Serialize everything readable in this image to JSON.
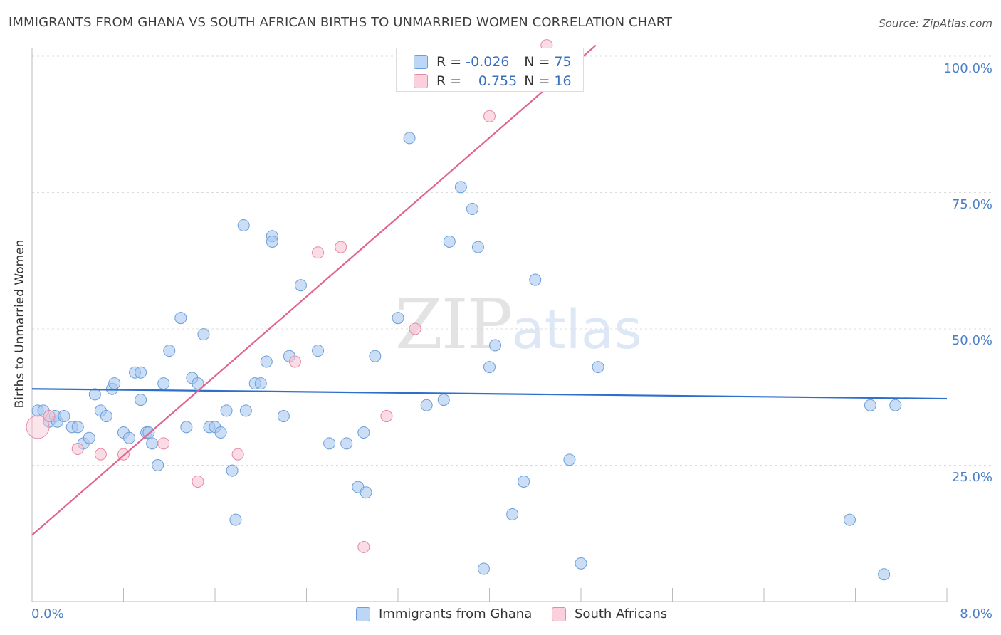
{
  "title": "IMMIGRANTS FROM GHANA VS SOUTH AFRICAN BIRTHS TO UNMARRIED WOMEN CORRELATION CHART",
  "source": "Source: ZipAtlas.com",
  "watermark": {
    "zip": "ZIP",
    "atlas": "atlas"
  },
  "stats": {
    "rows": [
      {
        "r_label": "R =",
        "r_value": "-0.026",
        "n_label": "N =",
        "n_value": "75",
        "color": "#a8c8f0"
      },
      {
        "r_label": "R =",
        "r_value": "0.755",
        "n_label": "N =",
        "n_value": "16",
        "color": "#f5b8c8"
      }
    ]
  },
  "legend": [
    {
      "label": "Immigrants from Ghana",
      "color": "#a8c8f0",
      "border": "#6b9fd8"
    },
    {
      "label": "South Africans",
      "color": "#f8c3d2",
      "border": "#e58aa5"
    }
  ],
  "colors": {
    "blue_point": "#a8c8f0",
    "blue_stroke": "#6b9fd8",
    "blue_line": "#2f6fcc",
    "pink_point": "#f8c3d2",
    "pink_stroke": "#e58aa5",
    "pink_line": "#e0648c"
  },
  "chart_data": {
    "type": "scatter",
    "title": "IMMIGRANTS FROM GHANA VS SOUTH AFRICAN BIRTHS TO UNMARRIED WOMEN CORRELATION CHART",
    "xlabel": "",
    "ylabel": "Births to Unmarried Women",
    "xlim": [
      0,
      8
    ],
    "ylim": [
      0,
      102
    ],
    "x_tick_labels": [
      "0.0%",
      "8.0%"
    ],
    "y_ticks": [
      25,
      50,
      75,
      100
    ],
    "y_tick_labels": [
      "25.0%",
      "50.0%",
      "75.0%",
      "100.0%"
    ],
    "grid": true,
    "series": [
      {
        "name": "Immigrants from Ghana",
        "points": [
          [
            0.05,
            35
          ],
          [
            0.1,
            35
          ],
          [
            0.15,
            33
          ],
          [
            0.2,
            34
          ],
          [
            0.22,
            33
          ],
          [
            0.28,
            34
          ],
          [
            0.35,
            32
          ],
          [
            0.4,
            32
          ],
          [
            0.45,
            29
          ],
          [
            0.5,
            30
          ],
          [
            0.55,
            38
          ],
          [
            0.6,
            35
          ],
          [
            0.65,
            34
          ],
          [
            0.7,
            39
          ],
          [
            0.72,
            40
          ],
          [
            0.8,
            31
          ],
          [
            0.85,
            30
          ],
          [
            0.9,
            42
          ],
          [
            0.95,
            37
          ],
          [
            0.95,
            42
          ],
          [
            1.0,
            31
          ],
          [
            1.02,
            31
          ],
          [
            1.05,
            29
          ],
          [
            1.1,
            25
          ],
          [
            1.15,
            40
          ],
          [
            1.2,
            46
          ],
          [
            1.3,
            52
          ],
          [
            1.35,
            32
          ],
          [
            1.4,
            41
          ],
          [
            1.45,
            40
          ],
          [
            1.5,
            49
          ],
          [
            1.55,
            32
          ],
          [
            1.6,
            32
          ],
          [
            1.65,
            31
          ],
          [
            1.7,
            35
          ],
          [
            1.75,
            24
          ],
          [
            1.78,
            15
          ],
          [
            1.85,
            69
          ],
          [
            1.87,
            35
          ],
          [
            1.95,
            40
          ],
          [
            2.0,
            40
          ],
          [
            2.05,
            44
          ],
          [
            2.1,
            67
          ],
          [
            2.1,
            66
          ],
          [
            2.2,
            34
          ],
          [
            2.25,
            45
          ],
          [
            2.35,
            58
          ],
          [
            2.5,
            46
          ],
          [
            2.6,
            29
          ],
          [
            2.75,
            29
          ],
          [
            2.85,
            21
          ],
          [
            2.9,
            31
          ],
          [
            2.92,
            20
          ],
          [
            3.0,
            45
          ],
          [
            3.2,
            52
          ],
          [
            3.3,
            85
          ],
          [
            3.45,
            36
          ],
          [
            3.6,
            37
          ],
          [
            3.65,
            66
          ],
          [
            3.75,
            76
          ],
          [
            3.85,
            72
          ],
          [
            3.9,
            65
          ],
          [
            3.95,
            6
          ],
          [
            4.0,
            43
          ],
          [
            4.05,
            47
          ],
          [
            4.2,
            16
          ],
          [
            4.3,
            22
          ],
          [
            4.4,
            59
          ],
          [
            4.7,
            26
          ],
          [
            4.8,
            7
          ],
          [
            4.95,
            43
          ],
          [
            7.15,
            15
          ],
          [
            7.33,
            36
          ],
          [
            7.45,
            5
          ],
          [
            7.55,
            36
          ]
        ]
      },
      {
        "name": "South Africans",
        "points": [
          [
            0.05,
            32
          ],
          [
            0.4,
            28
          ],
          [
            0.8,
            27
          ],
          [
            1.15,
            29
          ],
          [
            1.45,
            22
          ],
          [
            1.8,
            27
          ],
          [
            2.3,
            44
          ],
          [
            2.5,
            64
          ],
          [
            2.7,
            65
          ],
          [
            2.9,
            10
          ],
          [
            3.1,
            34
          ],
          [
            3.35,
            50
          ],
          [
            4.0,
            89
          ],
          [
            4.5,
            102
          ],
          [
            0.15,
            34
          ],
          [
            0.6,
            27
          ]
        ]
      }
    ],
    "trendlines": [
      {
        "name": "Immigrants from Ghana",
        "x": [
          0,
          8
        ],
        "y": [
          39,
          37.2
        ]
      },
      {
        "name": "South Africans",
        "x": [
          0,
          4.93
        ],
        "y": [
          12.2,
          102
        ]
      }
    ]
  }
}
